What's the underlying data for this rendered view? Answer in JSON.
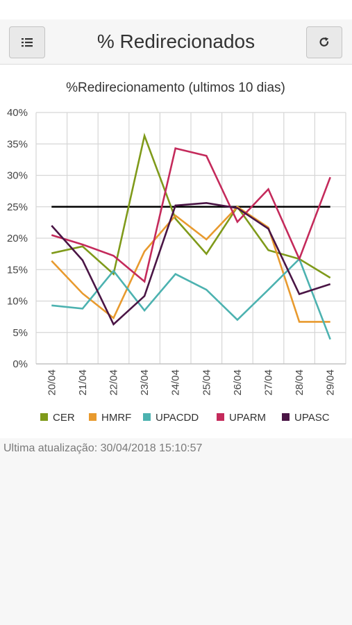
{
  "header": {
    "title": "% Redirecionados",
    "menu_icon": "list-icon",
    "refresh_icon": "refresh-icon"
  },
  "footer": {
    "last_update": "Ultima atualização: 30/04/2018 15:10:57"
  },
  "chart_data": {
    "type": "line",
    "title": "%Redirecionamento (ultimos 10 dias)",
    "categories": [
      "20/04",
      "21/04",
      "22/04",
      "23/04",
      "24/04",
      "25/04",
      "26/04",
      "27/04",
      "28/04",
      "29/04"
    ],
    "ylim": [
      0,
      40
    ],
    "yticks": [
      0,
      5,
      10,
      15,
      20,
      25,
      30,
      35,
      40
    ],
    "ytick_labels": [
      "0%",
      "5%",
      "10%",
      "15%",
      "20%",
      "25%",
      "30%",
      "35%",
      "40%"
    ],
    "grid": true,
    "legend_position": "bottom",
    "reference_line": {
      "value": 25,
      "color": "#000000"
    },
    "series": [
      {
        "name": "CER",
        "color": "#7f9a1a",
        "values": [
          17.6,
          18.7,
          14.3,
          36.3,
          23.1,
          17.5,
          25.0,
          18.1,
          16.7,
          13.7
        ]
      },
      {
        "name": "HMRF",
        "color": "#e89a2e",
        "values": [
          16.4,
          11.2,
          7.3,
          17.9,
          23.6,
          19.8,
          25.0,
          21.7,
          6.7,
          6.7
        ]
      },
      {
        "name": "UPACDD",
        "color": "#4cb2b0",
        "values": [
          9.3,
          8.8,
          14.8,
          8.5,
          14.3,
          11.8,
          7.0,
          11.8,
          16.7,
          3.9
        ]
      },
      {
        "name": "UPARM",
        "color": "#c42a5b",
        "values": [
          20.5,
          19.0,
          17.2,
          13.1,
          34.3,
          33.1,
          22.6,
          27.8,
          16.7,
          29.7
        ]
      },
      {
        "name": "UPASC",
        "color": "#4a1545",
        "values": [
          22.0,
          16.5,
          6.3,
          10.8,
          25.2,
          25.6,
          24.8,
          21.5,
          11.1,
          12.7
        ]
      }
    ]
  }
}
